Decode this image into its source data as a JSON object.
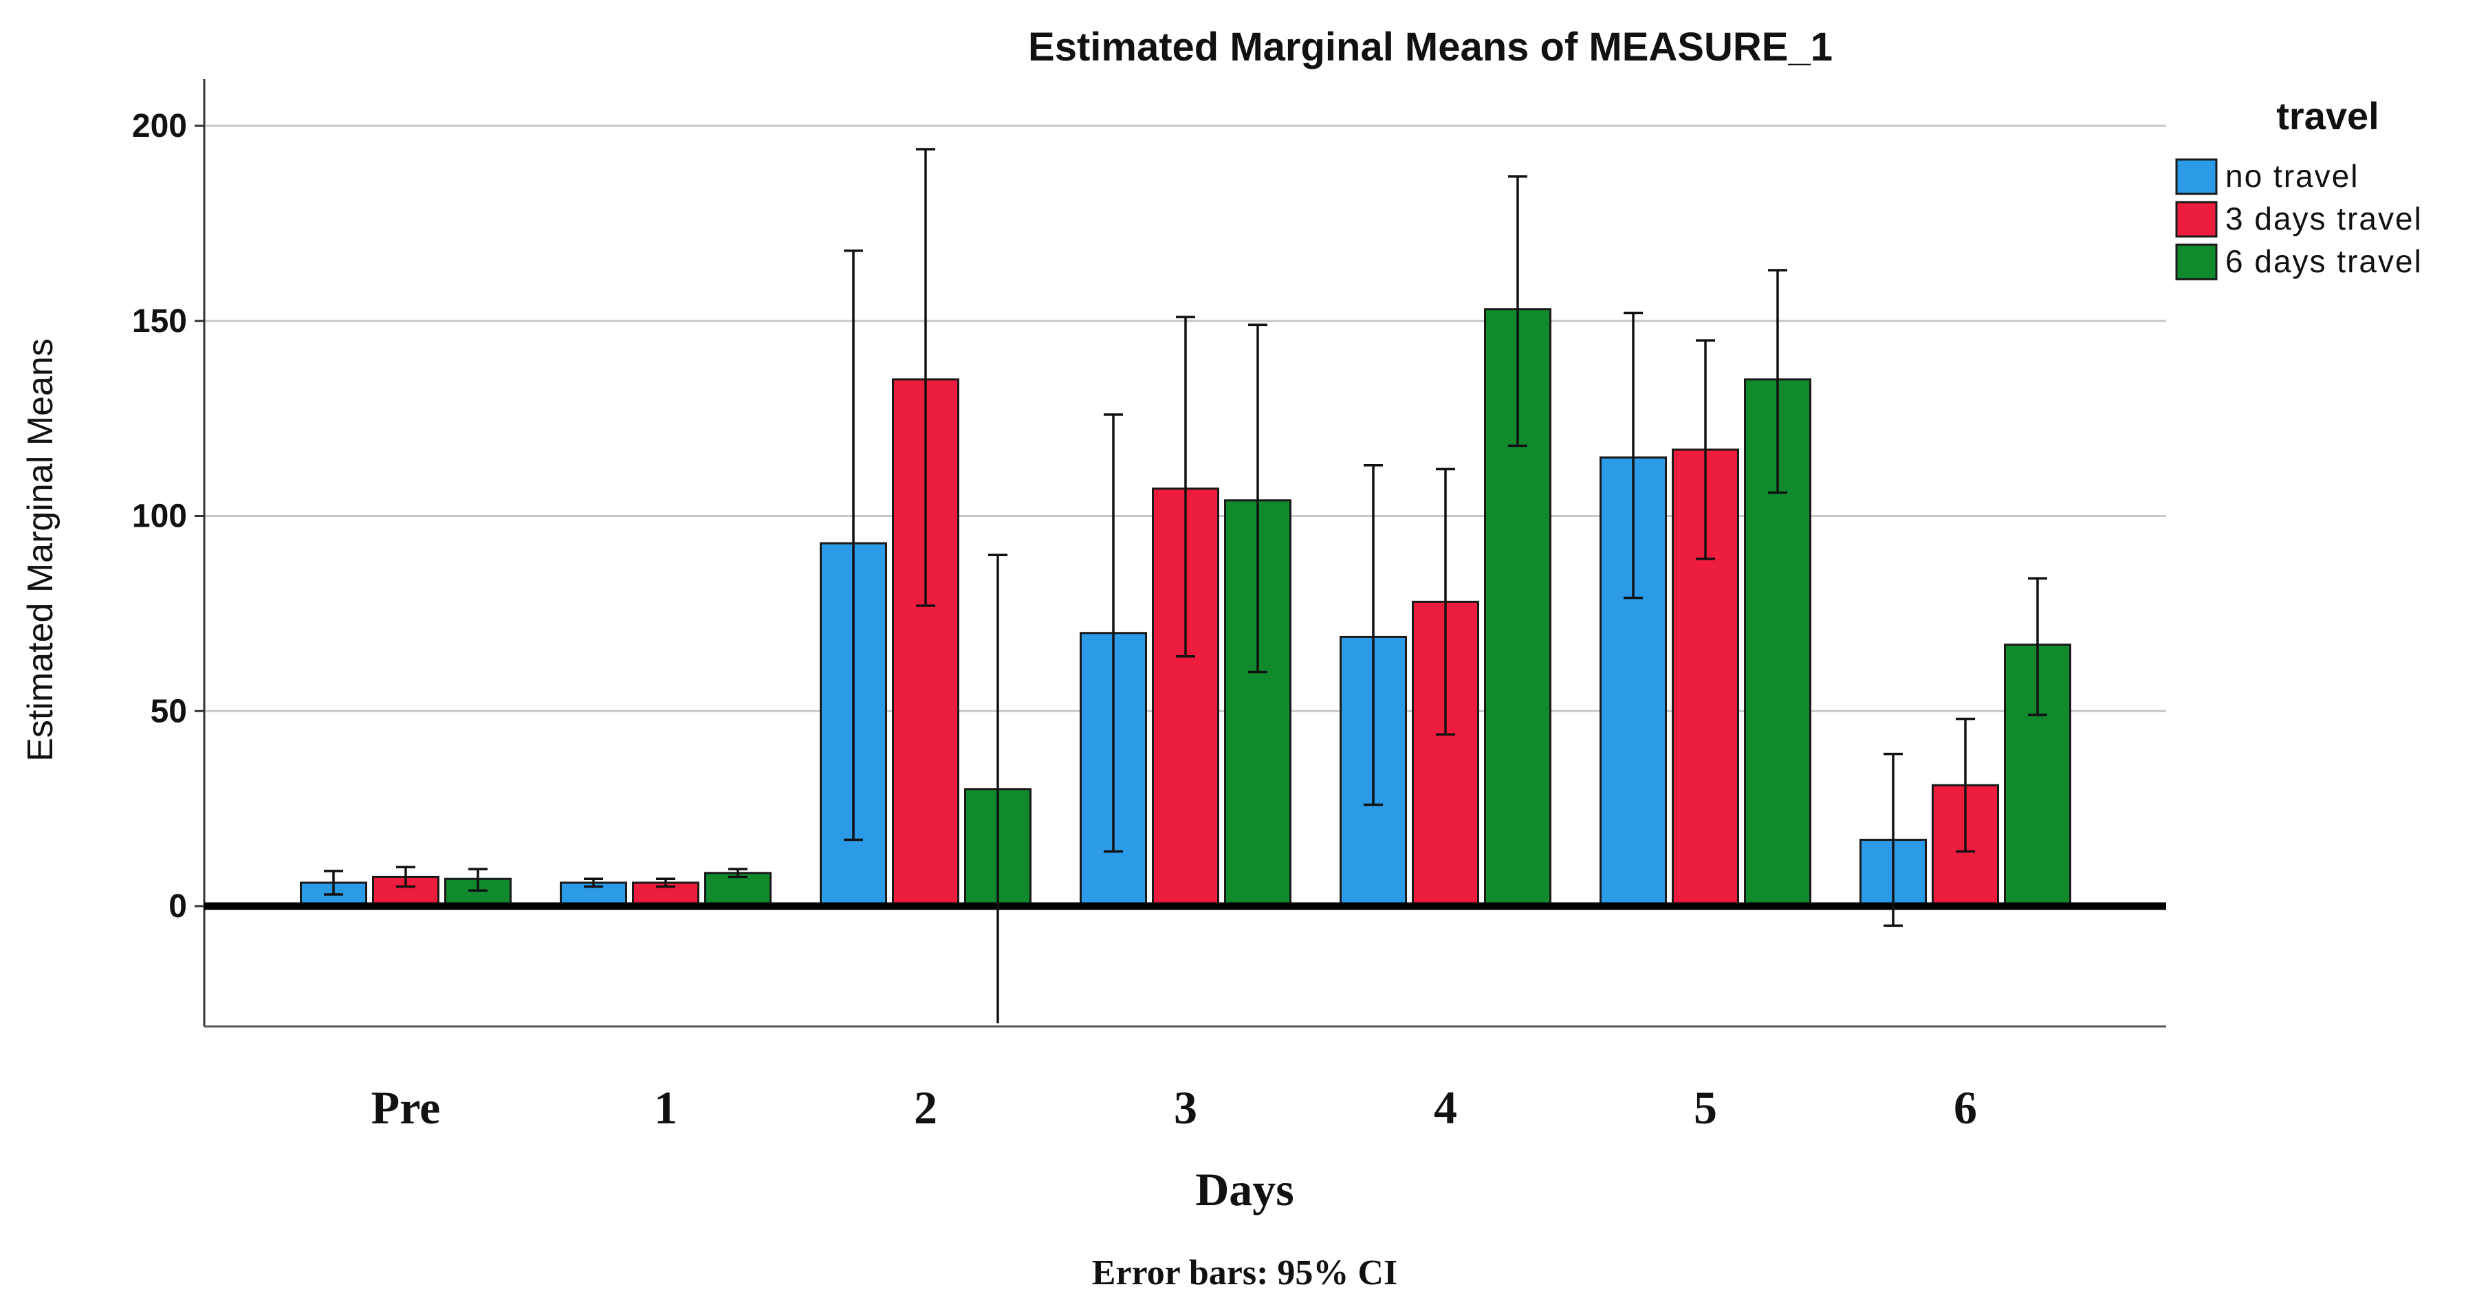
{
  "chart_data": {
    "type": "bar",
    "title": "Estimated Marginal Means of MEASURE_1",
    "xlabel": "Days",
    "ylabel": "Estimated Marginal Means",
    "footnote": "Error bars: 95% CI",
    "legend_title": "travel",
    "legend_position": "top-right",
    "grid": true,
    "ylim": [
      -30,
      212
    ],
    "yticks": [
      "0",
      "50",
      "100",
      "150",
      "200"
    ],
    "categories": [
      "Pre",
      "1",
      "2",
      "3",
      "4",
      "5",
      "6"
    ],
    "series": [
      {
        "name": "no travel",
        "color": "#2b9be8",
        "values": [
          6,
          6,
          93,
          70,
          69,
          115,
          17
        ],
        "ci_low": [
          3,
          5,
          17,
          14,
          26,
          79,
          -5
        ],
        "ci_high": [
          9,
          7,
          168,
          126,
          113,
          152,
          39
        ]
      },
      {
        "name": "3 days travel",
        "color": "#ee1c3d",
        "values": [
          7.5,
          6,
          135,
          107,
          78,
          117,
          31
        ],
        "ci_low": [
          5,
          5,
          77,
          64,
          44,
          89,
          14
        ],
        "ci_high": [
          10,
          7,
          194,
          151,
          112,
          145,
          48
        ]
      },
      {
        "name": "6 days travel",
        "color": "#118a2e",
        "values": [
          7,
          8.5,
          30,
          104,
          153,
          135,
          67
        ],
        "ci_low": [
          4,
          7.5,
          -30,
          60,
          118,
          106,
          49
        ],
        "ci_high": [
          9.5,
          9.5,
          90,
          149,
          187,
          163,
          84
        ]
      }
    ]
  }
}
